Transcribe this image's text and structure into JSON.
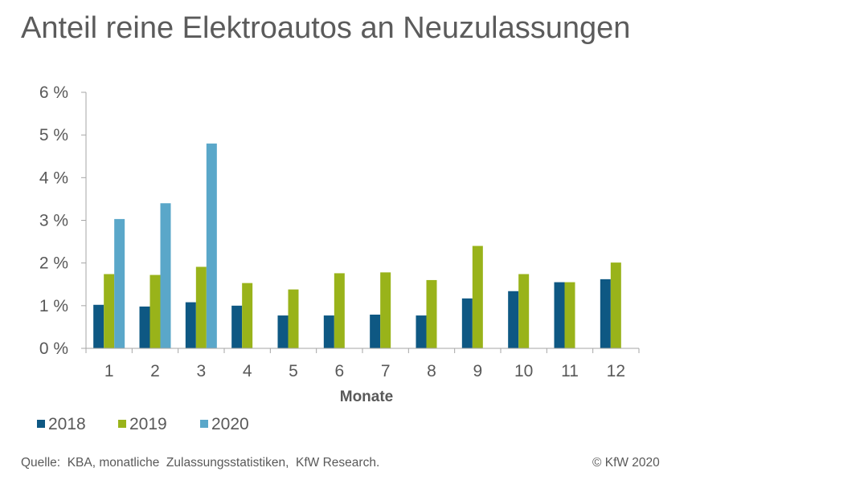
{
  "title": "Anteil reine Elektroautos an Neuzulassungen",
  "source": "Quelle:  KBA, monatliche  Zulassungsstatistiken,  KfW Research.",
  "copyright": "© KfW 2020",
  "chart_data": {
    "type": "bar",
    "title": "Anteil reine Elektroautos an Neuzulassungen",
    "xlabel": "Monate",
    "ylabel": "",
    "ylim": [
      0,
      6
    ],
    "y_ticks": [
      "0 %",
      "1 %",
      "2 %",
      "3 %",
      "4 %",
      "5 %",
      "6 %"
    ],
    "categories": [
      "1",
      "2",
      "3",
      "4",
      "5",
      "6",
      "7",
      "8",
      "9",
      "10",
      "11",
      "12"
    ],
    "legend_position": "bottom-left",
    "grid": false,
    "series": [
      {
        "name": "2018",
        "color": "#0e5883",
        "values": [
          1.02,
          0.98,
          1.08,
          1.0,
          0.77,
          0.77,
          0.79,
          0.77,
          1.17,
          1.34,
          1.55,
          1.62
        ]
      },
      {
        "name": "2019",
        "color": "#99b31a",
        "values": [
          1.74,
          1.72,
          1.91,
          1.53,
          1.38,
          1.76,
          1.78,
          1.6,
          2.4,
          1.74,
          1.55,
          2.01
        ]
      },
      {
        "name": "2020",
        "color": "#5aa7c9",
        "values": [
          3.03,
          3.4,
          4.8,
          null,
          null,
          null,
          null,
          null,
          null,
          null,
          null,
          null
        ]
      }
    ]
  }
}
